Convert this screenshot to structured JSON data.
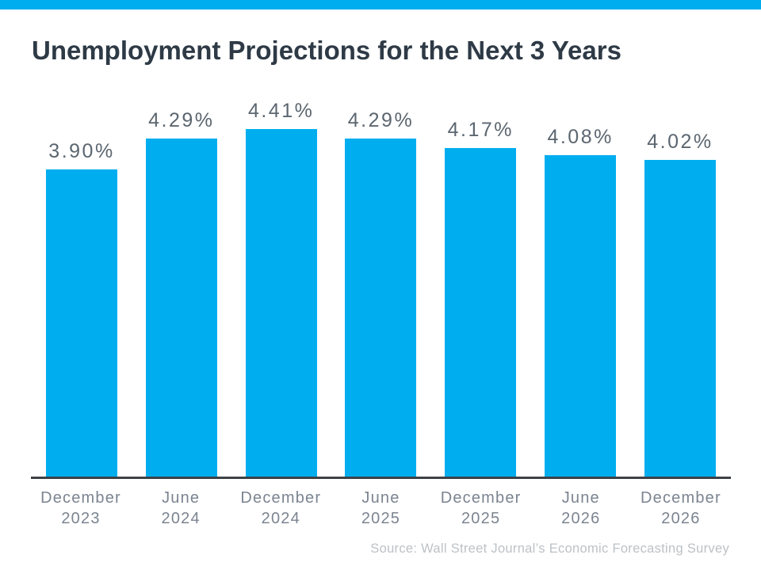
{
  "header": {
    "title": "Unemployment Projections for the Next 3 Years"
  },
  "chart_data": {
    "type": "bar",
    "title": "Unemployment Projections for the Next 3 Years",
    "categories": [
      [
        "December",
        "2023"
      ],
      [
        "June",
        "2024"
      ],
      [
        "December",
        "2024"
      ],
      [
        "June",
        "2025"
      ],
      [
        "December",
        "2025"
      ],
      [
        "June",
        "2026"
      ],
      [
        "December",
        "2026"
      ]
    ],
    "values": [
      3.9,
      4.29,
      4.41,
      4.29,
      4.17,
      4.08,
      4.02
    ],
    "value_labels": [
      "3.90%",
      "4.29%",
      "4.41%",
      "4.29%",
      "4.17%",
      "4.08%",
      "4.02%"
    ],
    "xlabel": "",
    "ylabel": "",
    "ylim": [
      0,
      4.75
    ],
    "grid": false,
    "legend_position": "none",
    "bar_color": "#00AEEF",
    "data_label_position": "above-bar"
  },
  "footer": {
    "source": "Source: Wall Street Journal’s Economic Forecasting Survey"
  },
  "colors": {
    "accent": "#00AEEF",
    "title_text": "#2E3A46",
    "value_label_text": "#5C6670",
    "axis_label_text": "#7B8490",
    "axis_line": "#3C4147",
    "source_text": "#BDC1C6",
    "background": "#FFFFFF"
  }
}
